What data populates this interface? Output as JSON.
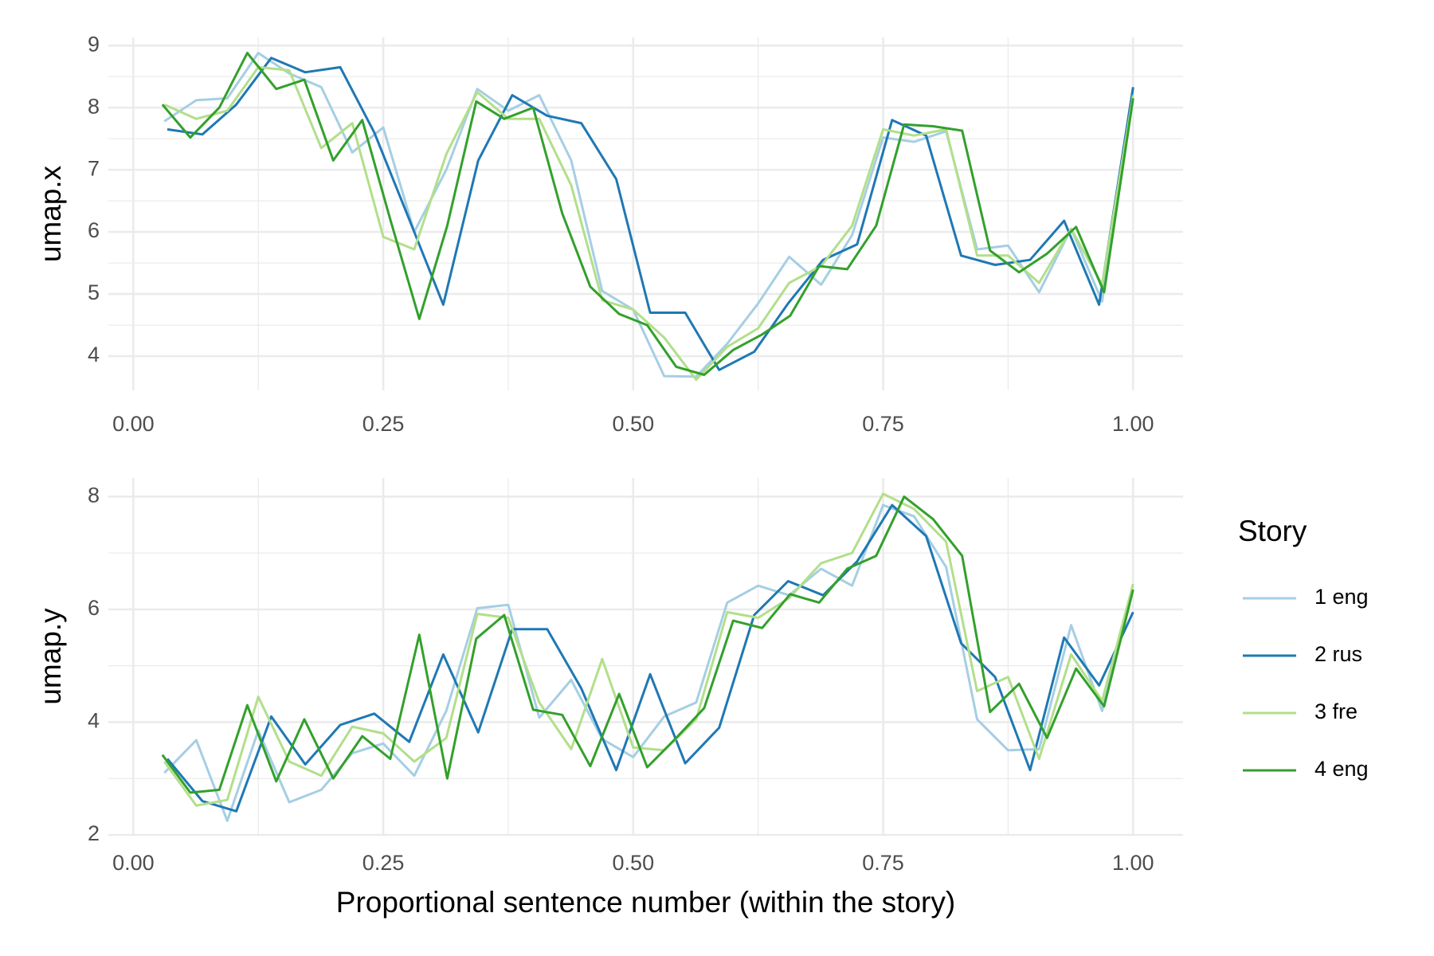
{
  "chart_data": [
    {
      "type": "line",
      "ylabel": "umap.x",
      "xlim": [
        -0.025,
        1.05
      ],
      "ylim": [
        3.45,
        9.13
      ],
      "xticks": [
        {
          "value": 0,
          "label": "0.00"
        },
        {
          "value": 0.25,
          "label": "0.25"
        },
        {
          "value": 0.5,
          "label": "0.50"
        },
        {
          "value": 0.75,
          "label": "0.75"
        },
        {
          "value": 1,
          "label": "1.00"
        }
      ],
      "yticks": [
        4,
        5,
        6,
        7,
        8,
        9
      ],
      "grid": true,
      "series": [
        {
          "color": "#a6cee3",
          "x": [
            0.031,
            0.063,
            0.094,
            0.125,
            0.156,
            0.188,
            0.219,
            0.25,
            0.281,
            0.313,
            0.344,
            0.375,
            0.406,
            0.438,
            0.469,
            0.5,
            0.531,
            0.563,
            0.594,
            0.625,
            0.656,
            0.688,
            0.719,
            0.75,
            0.781,
            0.813,
            0.844,
            0.875,
            0.906,
            0.938,
            0.969,
            1
          ],
          "values": [
            7.78,
            8.12,
            8.15,
            8.88,
            8.55,
            8.33,
            7.28,
            7.68,
            6.0,
            7.0,
            8.3,
            7.95,
            8.2,
            7.15,
            5.05,
            4.75,
            3.68,
            3.67,
            4.2,
            4.85,
            5.6,
            5.15,
            5.95,
            7.52,
            7.45,
            7.62,
            5.72,
            5.78,
            5.03,
            6.05,
            4.88,
            8.3
          ]
        },
        {
          "color": "#1f78b4",
          "x": [
            0.034,
            0.069,
            0.103,
            0.138,
            0.172,
            0.207,
            0.241,
            0.276,
            0.31,
            0.345,
            0.379,
            0.414,
            0.448,
            0.483,
            0.517,
            0.552,
            0.586,
            0.621,
            0.655,
            0.69,
            0.724,
            0.759,
            0.793,
            0.828,
            0.862,
            0.897,
            0.931,
            0.966,
            1
          ],
          "values": [
            7.65,
            7.57,
            8.05,
            8.8,
            8.57,
            8.65,
            7.6,
            6.2,
            4.83,
            7.15,
            8.2,
            7.87,
            7.75,
            6.85,
            4.7,
            4.7,
            3.78,
            4.07,
            4.85,
            5.55,
            5.8,
            7.8,
            7.55,
            5.62,
            5.47,
            5.55,
            6.18,
            4.83,
            8.33
          ]
        },
        {
          "color": "#b2df8a",
          "x": [
            0.031,
            0.063,
            0.094,
            0.125,
            0.156,
            0.188,
            0.219,
            0.25,
            0.281,
            0.313,
            0.344,
            0.375,
            0.406,
            0.438,
            0.469,
            0.5,
            0.531,
            0.563,
            0.594,
            0.625,
            0.656,
            0.688,
            0.719,
            0.75,
            0.781,
            0.813,
            0.844,
            0.875,
            0.906,
            0.938,
            0.969,
            1
          ],
          "values": [
            8.05,
            7.82,
            7.95,
            8.65,
            8.6,
            7.35,
            7.75,
            5.92,
            5.72,
            7.25,
            8.25,
            7.82,
            7.82,
            6.75,
            4.9,
            4.75,
            4.3,
            3.62,
            4.15,
            4.45,
            5.18,
            5.45,
            6.1,
            7.65,
            7.55,
            7.65,
            5.62,
            5.62,
            5.18,
            6.05,
            5.15,
            8.2
          ]
        },
        {
          "color": "#33a02c",
          "x": [
            0.029,
            0.057,
            0.086,
            0.114,
            0.143,
            0.171,
            0.2,
            0.229,
            0.257,
            0.286,
            0.314,
            0.343,
            0.371,
            0.4,
            0.429,
            0.457,
            0.486,
            0.514,
            0.543,
            0.571,
            0.6,
            0.629,
            0.657,
            0.686,
            0.714,
            0.743,
            0.771,
            0.8,
            0.829,
            0.857,
            0.886,
            0.914,
            0.943,
            0.971,
            1
          ],
          "values": [
            8.05,
            7.52,
            8.0,
            8.88,
            8.3,
            8.45,
            7.15,
            7.8,
            6.2,
            4.6,
            6.1,
            8.1,
            7.82,
            8.0,
            6.3,
            5.12,
            4.68,
            4.5,
            3.83,
            3.7,
            4.1,
            4.35,
            4.65,
            5.45,
            5.4,
            6.1,
            7.73,
            7.7,
            7.63,
            5.7,
            5.35,
            5.65,
            6.08,
            5.03,
            8.15
          ]
        }
      ]
    },
    {
      "type": "line",
      "ylabel": "umap.y",
      "xlabel": "Proportional sentence number (within the story)",
      "legend_title": "Story",
      "legend": "right",
      "xlim": [
        -0.025,
        1.05
      ],
      "ylim": [
        2,
        8.33
      ],
      "xticks": [
        {
          "value": 0,
          "label": "0.00"
        },
        {
          "value": 0.25,
          "label": "0.25"
        },
        {
          "value": 0.5,
          "label": "0.50"
        },
        {
          "value": 0.75,
          "label": "0.75"
        },
        {
          "value": 1,
          "label": "1.00"
        }
      ],
      "yticks": [
        2,
        4,
        6,
        8
      ],
      "grid": true,
      "series": [
        {
          "name": "1 eng",
          "color": "#a6cee3",
          "x": [
            0.031,
            0.063,
            0.094,
            0.125,
            0.156,
            0.188,
            0.219,
            0.25,
            0.281,
            0.313,
            0.344,
            0.375,
            0.406,
            0.438,
            0.469,
            0.5,
            0.531,
            0.563,
            0.594,
            0.625,
            0.656,
            0.688,
            0.719,
            0.75,
            0.781,
            0.813,
            0.844,
            0.875,
            0.906,
            0.938,
            0.969,
            1
          ],
          "values": [
            3.1,
            3.68,
            2.25,
            3.85,
            2.58,
            2.8,
            3.45,
            3.62,
            3.05,
            4.2,
            6.02,
            6.08,
            4.08,
            4.75,
            3.7,
            3.38,
            4.1,
            4.35,
            6.12,
            6.42,
            6.25,
            6.72,
            6.42,
            7.85,
            7.65,
            6.75,
            4.05,
            3.5,
            3.52,
            5.72,
            4.2,
            6.45
          ]
        },
        {
          "name": "2 rus",
          "color": "#1f78b4",
          "x": [
            0.034,
            0.069,
            0.103,
            0.138,
            0.172,
            0.207,
            0.241,
            0.276,
            0.31,
            0.345,
            0.379,
            0.414,
            0.448,
            0.483,
            0.517,
            0.552,
            0.586,
            0.621,
            0.655,
            0.69,
            0.724,
            0.759,
            0.793,
            0.828,
            0.862,
            0.897,
            0.931,
            0.966,
            1
          ],
          "values": [
            3.35,
            2.6,
            2.42,
            4.1,
            3.25,
            3.95,
            4.15,
            3.65,
            5.2,
            3.82,
            5.65,
            5.65,
            4.6,
            3.15,
            4.85,
            3.27,
            3.9,
            5.9,
            6.5,
            6.25,
            6.85,
            7.85,
            7.3,
            5.4,
            4.8,
            3.15,
            5.5,
            4.65,
            5.95
          ]
        },
        {
          "name": "3 fre",
          "color": "#b2df8a",
          "x": [
            0.031,
            0.063,
            0.094,
            0.125,
            0.156,
            0.188,
            0.219,
            0.25,
            0.281,
            0.313,
            0.344,
            0.375,
            0.406,
            0.438,
            0.469,
            0.5,
            0.531,
            0.563,
            0.594,
            0.625,
            0.656,
            0.688,
            0.719,
            0.75,
            0.781,
            0.813,
            0.844,
            0.875,
            0.906,
            0.938,
            0.969,
            1
          ],
          "values": [
            3.3,
            2.52,
            2.62,
            4.45,
            3.3,
            3.05,
            3.92,
            3.8,
            3.3,
            3.72,
            5.92,
            5.85,
            4.35,
            3.52,
            5.12,
            3.55,
            3.5,
            4.05,
            5.95,
            5.85,
            6.2,
            6.82,
            7.0,
            8.05,
            7.78,
            7.2,
            4.55,
            4.8,
            3.35,
            5.2,
            4.38,
            6.45
          ]
        },
        {
          "name": "4 eng",
          "color": "#33a02c",
          "x": [
            0.029,
            0.057,
            0.086,
            0.114,
            0.143,
            0.171,
            0.2,
            0.229,
            0.257,
            0.286,
            0.314,
            0.343,
            0.371,
            0.4,
            0.429,
            0.457,
            0.486,
            0.514,
            0.543,
            0.571,
            0.6,
            0.629,
            0.657,
            0.686,
            0.714,
            0.743,
            0.771,
            0.8,
            0.829,
            0.857,
            0.886,
            0.914,
            0.943,
            0.971,
            1
          ],
          "values": [
            3.42,
            2.75,
            2.8,
            4.3,
            2.95,
            4.05,
            3.0,
            3.75,
            3.35,
            5.55,
            3.0,
            5.48,
            5.9,
            4.22,
            4.13,
            3.22,
            4.5,
            3.2,
            3.72,
            4.25,
            5.8,
            5.67,
            6.27,
            6.12,
            6.72,
            6.95,
            8.0,
            7.6,
            6.95,
            4.18,
            4.68,
            3.72,
            4.95,
            4.28,
            6.35
          ]
        }
      ]
    }
  ]
}
